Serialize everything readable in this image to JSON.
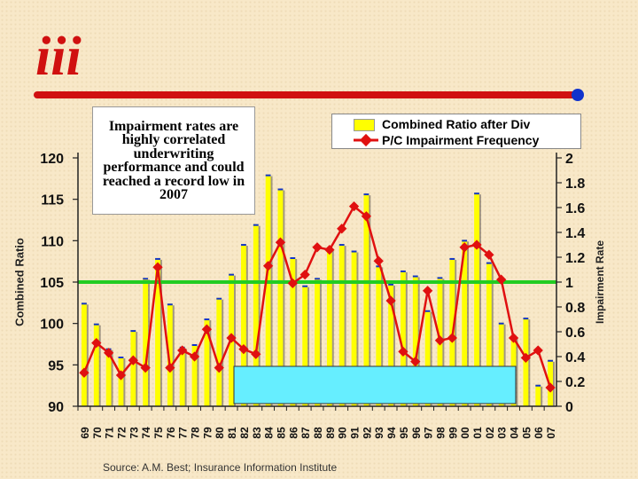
{
  "logo": {
    "text": "iii"
  },
  "note": {
    "text": "Impairment rates are highly correlated underwriting performance and could reached a record low in 2007"
  },
  "source": {
    "text": "Source: A.M. Best; Insurance Information Institute"
  },
  "colors": {
    "bar": "#ffff00",
    "line": "#e01010",
    "reference": "#22cc22",
    "box": "#66eeff",
    "logo": "#d01010",
    "bar_top": "#1133cc"
  },
  "chart_data": {
    "type": "bar",
    "categories": [
      "69",
      "70",
      "71",
      "72",
      "73",
      "74",
      "75",
      "76",
      "77",
      "78",
      "79",
      "80",
      "81",
      "82",
      "83",
      "84",
      "85",
      "86",
      "87",
      "88",
      "89",
      "90",
      "91",
      "92",
      "93",
      "94",
      "95",
      "96",
      "97",
      "98",
      "99",
      "00",
      "01",
      "02",
      "03",
      "04",
      "05",
      "06",
      "07"
    ],
    "series": [
      {
        "name": "Combined Ratio after Div",
        "axis": "left",
        "kind": "bar",
        "values": [
          102.5,
          100,
          97,
          96,
          99.2,
          105.5,
          107.9,
          102.4,
          97.2,
          97.5,
          100.6,
          103.1,
          106,
          109.6,
          112,
          118,
          116.3,
          108,
          104.6,
          105.5,
          109.2,
          109.6,
          108.8,
          115.7,
          107,
          104.8,
          106.4,
          105.8,
          101.6,
          105.6,
          107.9,
          110.1,
          115.8,
          107.4,
          100.1,
          98.4,
          100.7,
          92.6,
          95.6
        ]
      },
      {
        "name": "P/C Impairment Frequency",
        "axis": "right",
        "kind": "line",
        "values": [
          0.27,
          0.51,
          0.43,
          0.25,
          0.37,
          0.31,
          1.12,
          0.31,
          0.45,
          0.4,
          0.62,
          0.31,
          0.55,
          0.46,
          0.42,
          1.13,
          1.32,
          0.99,
          1.06,
          1.28,
          1.26,
          1.43,
          1.61,
          1.53,
          1.17,
          0.85,
          0.44,
          0.36,
          0.93,
          0.53,
          0.55,
          1.28,
          1.3,
          1.22,
          1.02,
          0.55,
          0.39,
          0.45,
          0.15
        ]
      }
    ],
    "left_axis": {
      "label": "Combined Ratio",
      "ylim": [
        90,
        120
      ],
      "ticks": [
        90,
        95,
        100,
        105,
        110,
        115,
        120
      ]
    },
    "right_axis": {
      "label": "Impairment Rate",
      "ylim": [
        0,
        2
      ],
      "ticks": [
        "0",
        "0.2",
        "0.4",
        "0.6",
        "0.8",
        "1",
        "1.2",
        "1.4",
        "1.6",
        "1.8",
        "2"
      ]
    },
    "reference_line": {
      "axis": "right",
      "value": 1.0
    },
    "legend": {
      "placement": "top-right",
      "entries": [
        "Combined Ratio after Div",
        "P/C Impairment Frequency"
      ]
    },
    "grid": false
  }
}
